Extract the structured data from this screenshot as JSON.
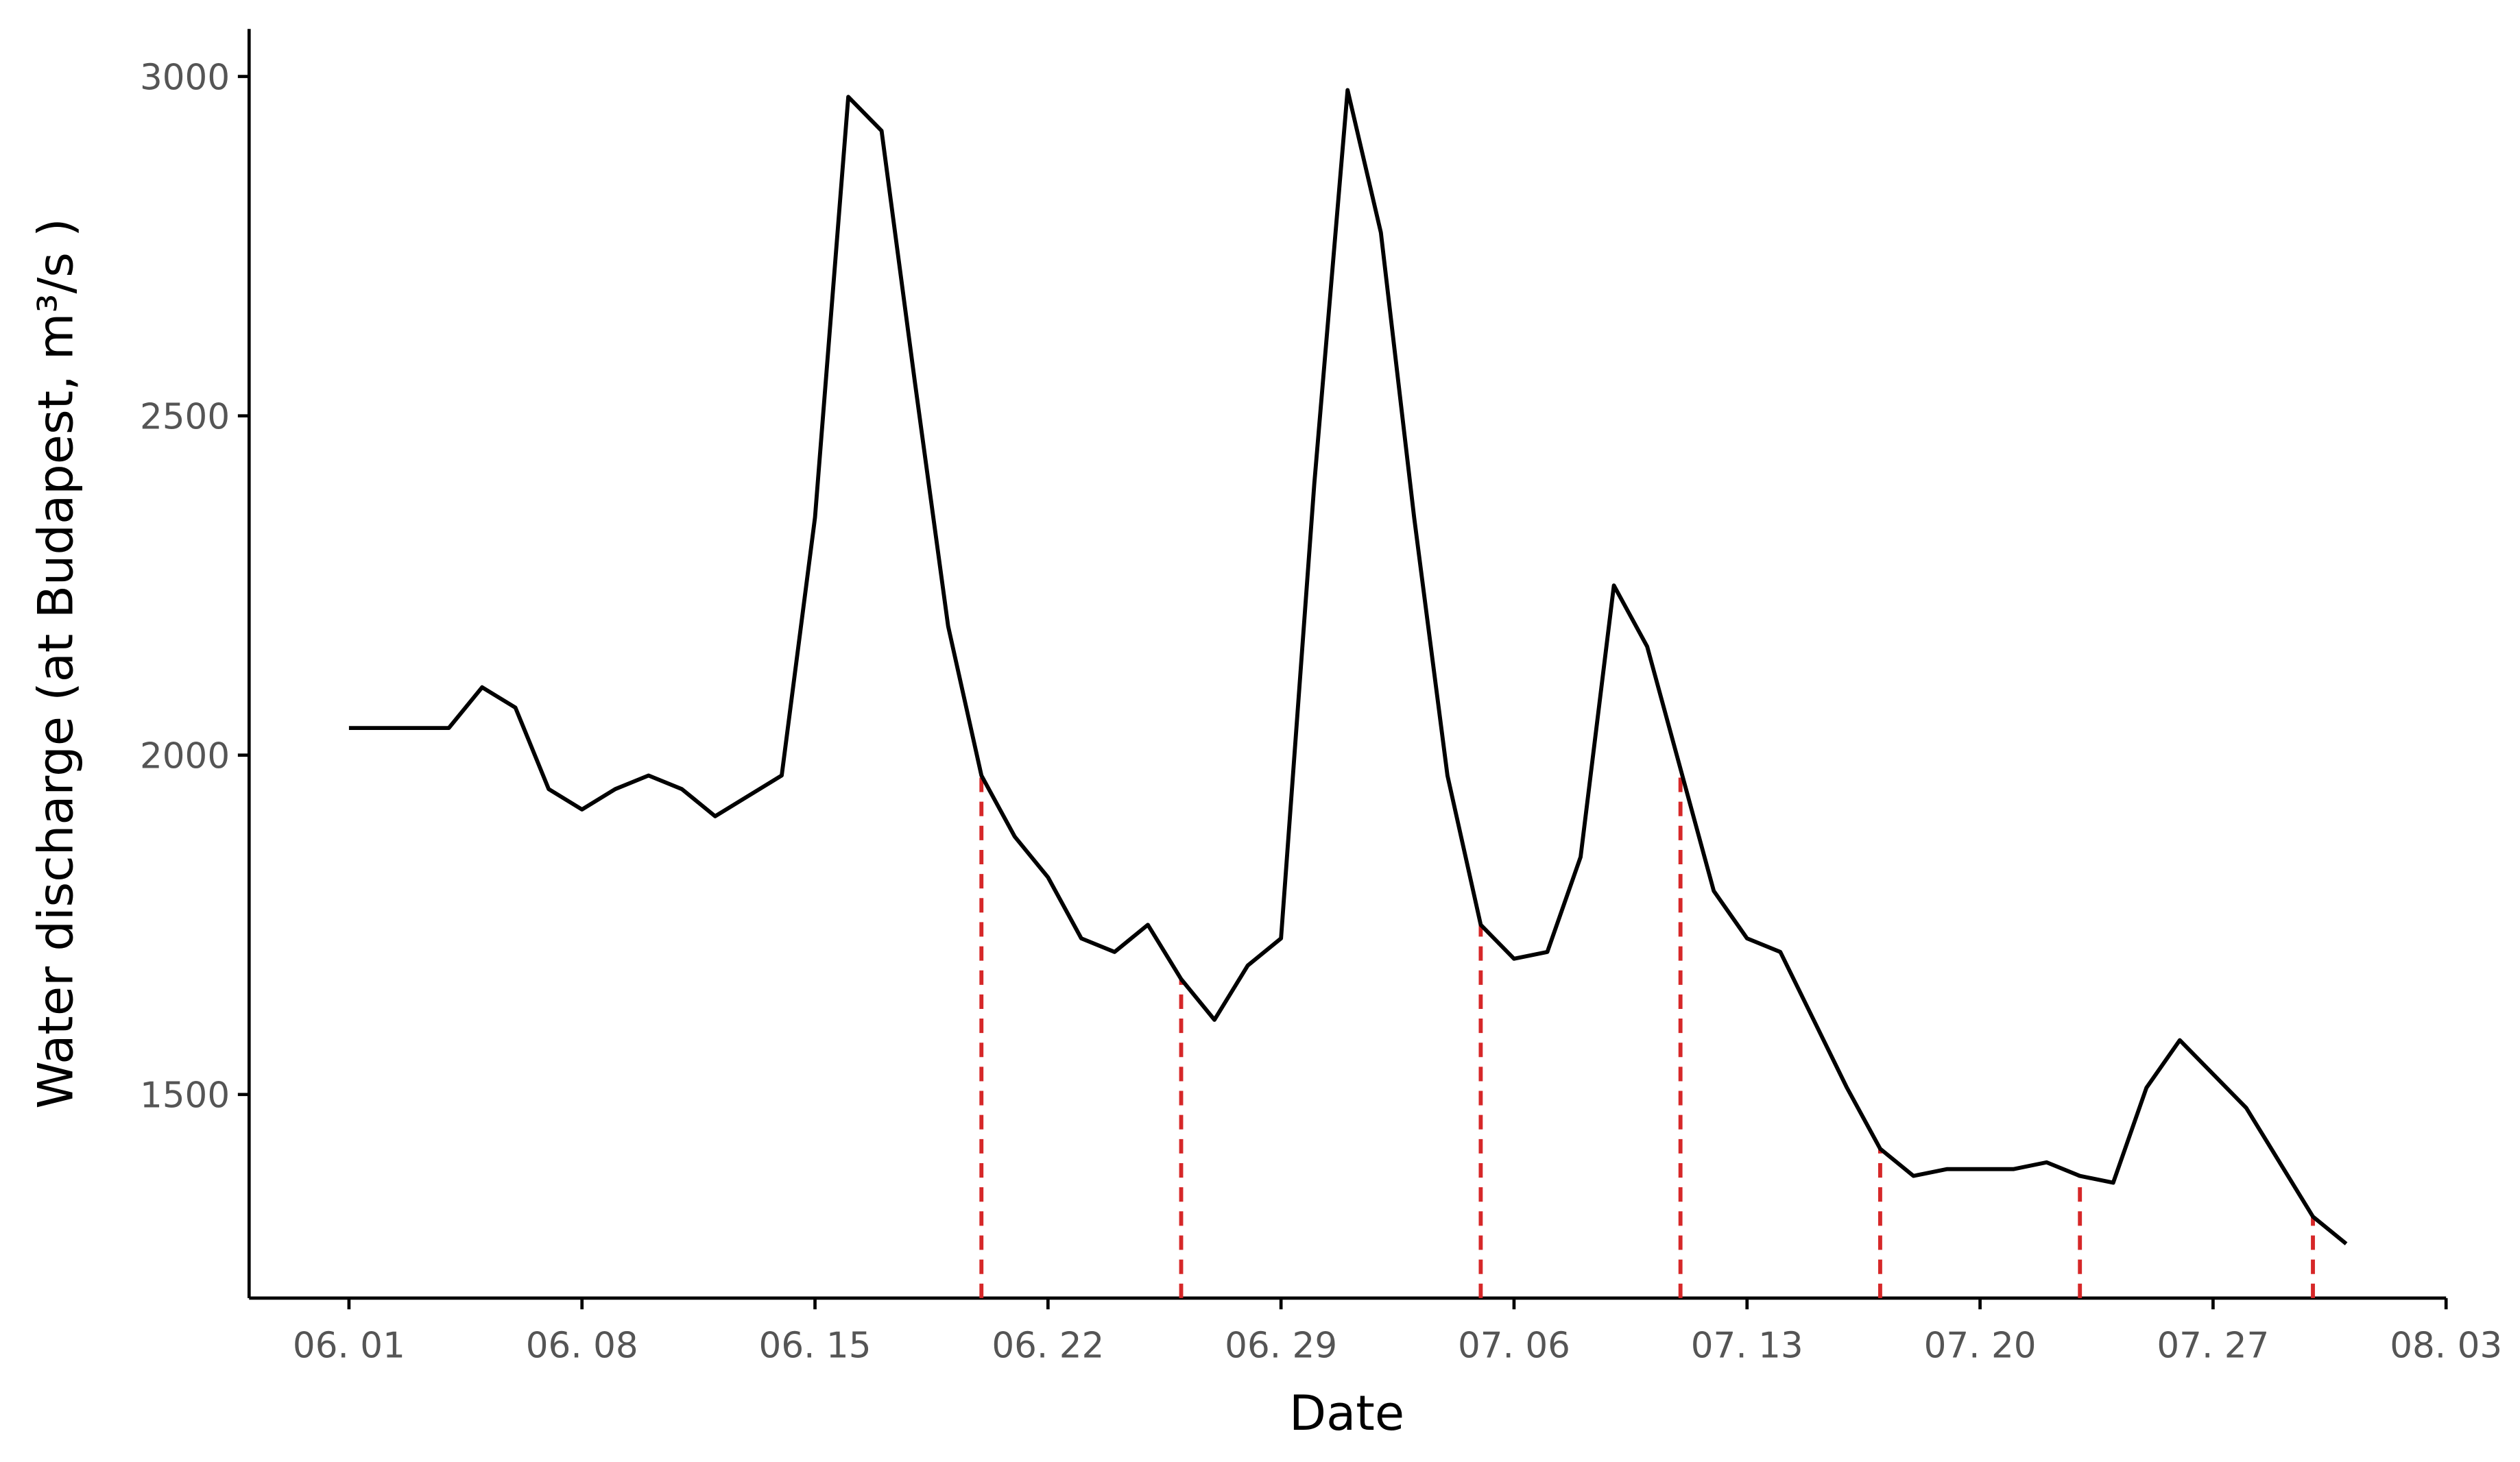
{
  "chart_data": {
    "type": "line",
    "xlabel": "Date",
    "ylabel": "Water discharge (at Budapest, m³/s )",
    "x": [
      "06. 01",
      "06. 02",
      "06. 03",
      "06. 04",
      "06. 05",
      "06. 06",
      "06. 07",
      "06. 08",
      "06. 09",
      "06. 10",
      "06. 11",
      "06. 12",
      "06. 13",
      "06. 14",
      "06. 15",
      "06. 16",
      "06. 17",
      "06. 18",
      "06. 19",
      "06. 20",
      "06. 21",
      "06. 22",
      "06. 23",
      "06. 24",
      "06. 25",
      "06. 26",
      "06. 27",
      "06. 28",
      "06. 29",
      "06. 30",
      "07. 01",
      "07. 02",
      "07. 03",
      "07. 04",
      "07. 05",
      "07. 06",
      "07. 07",
      "07. 08",
      "07. 09",
      "07. 10",
      "07. 11",
      "07. 12",
      "07. 13",
      "07. 14",
      "07. 15",
      "07. 16",
      "07. 17",
      "07. 18",
      "07. 19",
      "07. 20",
      "07. 21",
      "07. 22",
      "07. 23",
      "07. 24",
      "07. 25",
      "07. 26",
      "07. 27",
      "07. 28",
      "07. 29",
      "07. 30",
      "07. 31"
    ],
    "series": [
      {
        "color": "#000000",
        "values": [
          2040,
          2040,
          2040,
          2040,
          2100,
          2070,
          1950,
          1920,
          1950,
          1970,
          1950,
          1910,
          1940,
          1970,
          2350,
          2970,
          2920,
          2550,
          2190,
          1970,
          1880,
          1820,
          1730,
          1710,
          1750,
          1670,
          1610,
          1690,
          1730,
          2400,
          2980,
          2770,
          2350,
          1970,
          1750,
          1700,
          1710,
          1850,
          2250,
          2160,
          1980,
          1800,
          1730,
          1710,
          1610,
          1510,
          1420,
          1380,
          1390,
          1390,
          1390,
          1400,
          1380,
          1370,
          1510,
          1580,
          1530,
          1480,
          1400,
          1320,
          1280
        ]
      }
    ],
    "vlines": {
      "color": "#d62728",
      "x": [
        "06. 20",
        "06. 26",
        "07. 05",
        "07. 11",
        "07. 17",
        "07. 23",
        "07. 30"
      ]
    },
    "xlim": [
      "05. 29",
      "08. 03"
    ],
    "xticks": [
      "06. 01",
      "06. 08",
      "06. 15",
      "06. 22",
      "06. 29",
      "07. 06",
      "07. 13",
      "07. 20",
      "07. 27",
      "08. 03"
    ],
    "ylim": [
      1200,
      3070
    ],
    "yticks": [
      1500,
      2000,
      2500,
      3000
    ]
  }
}
